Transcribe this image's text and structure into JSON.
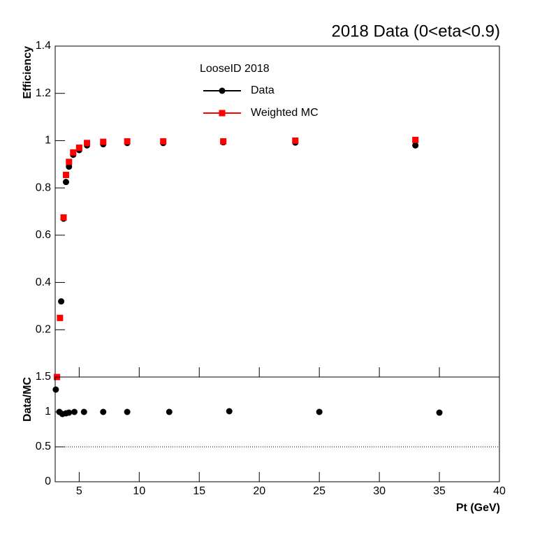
{
  "chart_data": [
    {
      "type": "scatter",
      "title": "2018 Data (0<eta<0.9)",
      "ylabel": "Efficiency",
      "legend_title": "LooseID 2018",
      "xlim": [
        3,
        40
      ],
      "ylim": [
        0,
        1.4
      ],
      "yticks": [
        0.2,
        0.4,
        0.6,
        0.8,
        1,
        1.2,
        1.4
      ],
      "series": [
        {
          "name": "Data",
          "color": "#000000",
          "marker": "circle",
          "x": [
            3.5,
            3.7,
            3.9,
            4.15,
            4.5,
            5,
            5.65,
            7,
            9,
            12,
            17,
            23,
            33
          ],
          "values": [
            0.32,
            0.67,
            0.825,
            0.89,
            0.94,
            0.96,
            0.98,
            0.985,
            0.99,
            0.99,
            0.993,
            0.992,
            0.98
          ]
        },
        {
          "name": "Weighted MC",
          "color": "#ff0000",
          "marker": "square",
          "x": [
            3.15,
            3.4,
            3.7,
            3.9,
            4.15,
            4.5,
            5,
            5.65,
            7,
            9,
            12,
            17,
            23,
            33
          ],
          "values": [
            0,
            0.25,
            0.675,
            0.855,
            0.91,
            0.95,
            0.97,
            0.99,
            0.995,
            0.997,
            0.997,
            0.997,
            1.0,
            1.003
          ]
        }
      ]
    },
    {
      "type": "scatter",
      "ylabel": "Data/MC",
      "xlabel": "Pt (GeV)",
      "xlim": [
        3,
        40
      ],
      "ylim": [
        0,
        1.5
      ],
      "xticks": [
        5,
        10,
        15,
        20,
        25,
        30,
        35,
        40
      ],
      "yticks": [
        0,
        0.5,
        1,
        1.5
      ],
      "reference_line": 0.5,
      "series": [
        {
          "name": "Data/MC",
          "color": "#000000",
          "marker": "circle",
          "x": [
            3.05,
            3.35,
            3.6,
            3.9,
            4.15,
            4.6,
            5.4,
            7,
            9,
            12.5,
            17.5,
            25,
            35
          ],
          "values": [
            1.32,
            1.0,
            0.97,
            0.98,
            0.99,
            1.0,
            1.0,
            1.0,
            1.0,
            1.0,
            1.01,
            1.0,
            0.99
          ]
        }
      ]
    }
  ]
}
